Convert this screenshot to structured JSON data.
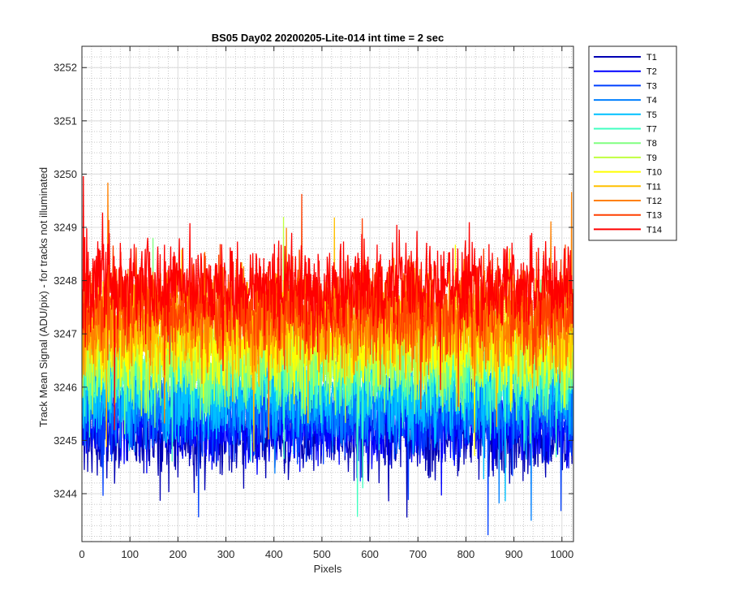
{
  "chart_data": {
    "type": "line",
    "title": "BS05 Day02 20200205-Lite-014 int time = 2 sec",
    "xlabel": "Pixels",
    "ylabel": "Track Mean Signal (ADU/pix) - for tracks not illuminated",
    "xlim": [
      0,
      1024
    ],
    "ylim": [
      3243.1,
      3252.4
    ],
    "xticks": [
      0,
      100,
      200,
      300,
      400,
      500,
      600,
      700,
      800,
      900,
      1000
    ],
    "yticks": [
      3244,
      3245,
      3246,
      3247,
      3248,
      3249,
      3250,
      3251,
      3252
    ],
    "grid": "major and minor",
    "legend_position": "outside top-right",
    "points_per_series": 1024,
    "series": [
      {
        "name": "T1",
        "color": "#0000b3",
        "mean": 3245.1,
        "spread": 0.75
      },
      {
        "name": "T2",
        "color": "#0000ff",
        "mean": 3245.3,
        "spread": 0.7
      },
      {
        "name": "T3",
        "color": "#0040ff",
        "mean": 3245.5,
        "spread": 0.7
      },
      {
        "name": "T4",
        "color": "#0080ff",
        "mean": 3245.7,
        "spread": 0.7
      },
      {
        "name": "T5",
        "color": "#00c0ff",
        "mean": 3245.9,
        "spread": 0.75
      },
      {
        "name": "T7",
        "color": "#40ffc0",
        "mean": 3246.3,
        "spread": 0.8
      },
      {
        "name": "T8",
        "color": "#80ff80",
        "mean": 3246.5,
        "spread": 0.8
      },
      {
        "name": "T9",
        "color": "#c0ff40",
        "mean": 3246.7,
        "spread": 0.8
      },
      {
        "name": "T10",
        "color": "#ffff00",
        "mean": 3246.9,
        "spread": 0.85
      },
      {
        "name": "T11",
        "color": "#ffc000",
        "mean": 3247.1,
        "spread": 0.85
      },
      {
        "name": "T12",
        "color": "#ff8000",
        "mean": 3247.3,
        "spread": 0.85
      },
      {
        "name": "T13",
        "color": "#ff4000",
        "mean": 3247.5,
        "spread": 0.85
      },
      {
        "name": "T14",
        "color": "#ff0000",
        "mean": 3247.9,
        "spread": 0.85
      }
    ]
  }
}
